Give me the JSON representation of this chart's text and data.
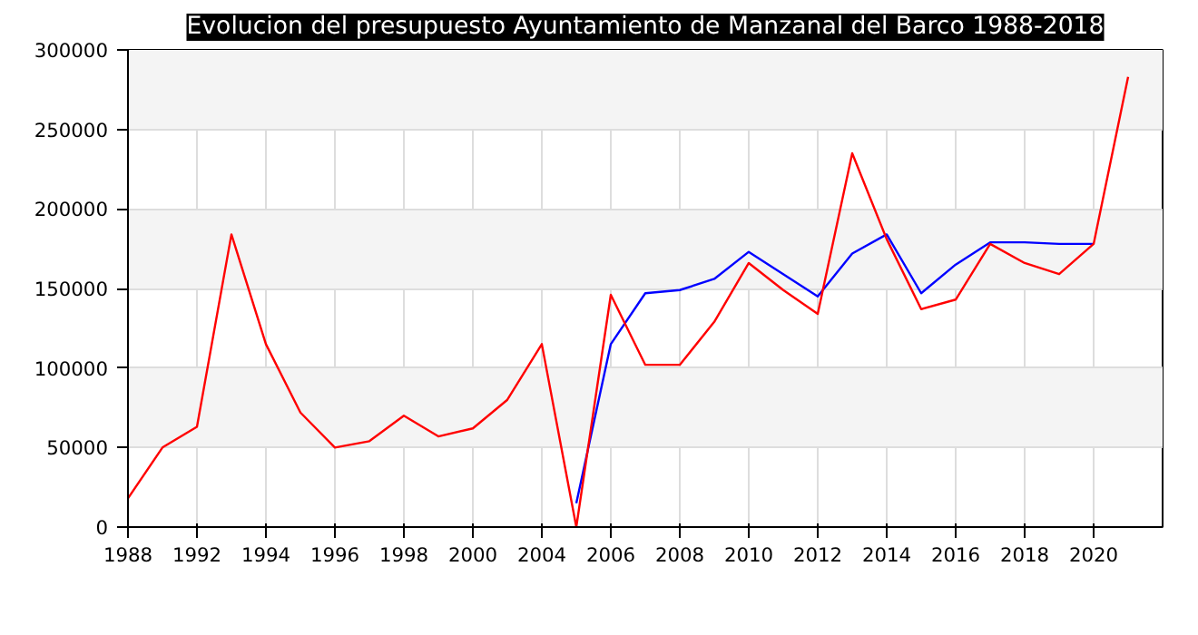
{
  "chart_data": {
    "type": "line",
    "title": "Evolucion del presupuesto Ayuntamiento de Manzanal del Barco 1988-2018",
    "categories": [
      "1988",
      null,
      "1992",
      null,
      "1994",
      null,
      "1996",
      null,
      "1998",
      null,
      "2000",
      null,
      "2004",
      null,
      "2006",
      null,
      "2008",
      null,
      "2010",
      null,
      "2012",
      null,
      "2014",
      null,
      "2016",
      null,
      "2018",
      null,
      "2020",
      null
    ],
    "series": [
      {
        "color": "#0000ff",
        "values": [
          null,
          null,
          null,
          null,
          null,
          null,
          null,
          null,
          null,
          null,
          null,
          null,
          null,
          15000,
          115000,
          147000,
          149000,
          156000,
          173000,
          159000,
          145000,
          172000,
          184000,
          147000,
          165000,
          179000,
          179000,
          178000,
          178000,
          null
        ]
      },
      {
        "color": "#ff0000",
        "values": [
          18000,
          50000,
          63000,
          184000,
          115000,
          72000,
          50000,
          54000,
          70000,
          57000,
          62000,
          80000,
          115000,
          0,
          146000,
          102000,
          102000,
          129000,
          166000,
          149000,
          134000,
          235000,
          181000,
          137000,
          143000,
          178000,
          166000,
          159000,
          178000,
          283000
        ]
      }
    ],
    "ylim": [
      0,
      300000
    ],
    "yticks": [
      0,
      50000,
      100000,
      150000,
      200000,
      250000,
      300000
    ],
    "grid": true,
    "line_style": "solid",
    "marker": "none"
  }
}
